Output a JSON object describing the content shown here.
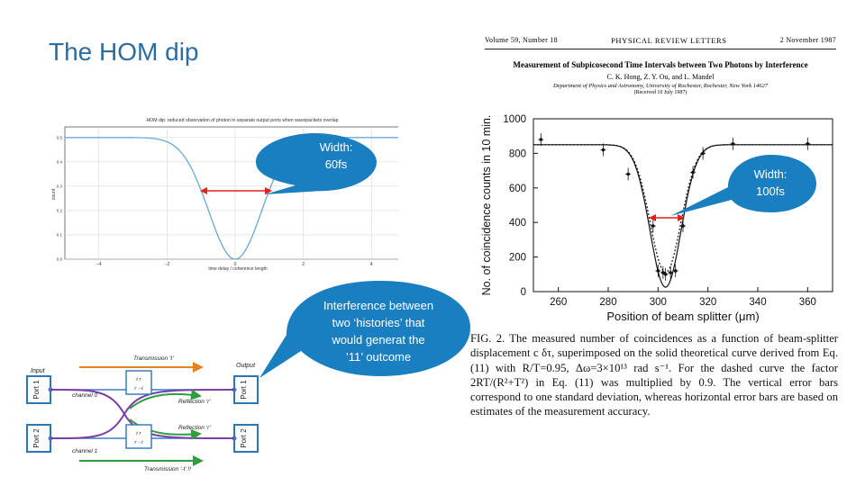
{
  "slide": {
    "title": "The HOM dip"
  },
  "left_plot": {
    "title": "HOM dip: reduced observation of photon in separate output ports when wavepackets overlap",
    "xlabel": "time delay / coherence length",
    "ylabel": "count",
    "x_ticks": [
      "−4",
      "−2",
      "0",
      "2",
      "4"
    ],
    "y_ticks": [
      "0.0",
      "0.1",
      "0.2",
      "0.3",
      "0.4",
      "0.5"
    ],
    "callout": {
      "line1": "Width:",
      "line2": "60fs"
    }
  },
  "right_plot": {
    "ylabel": "No. of coincidence counts in 10 min.",
    "xlabel": "Position of beam splitter (μm)",
    "x_ticks": [
      "260",
      "280",
      "300",
      "320",
      "340",
      "360"
    ],
    "y_ticks": [
      "0",
      "200",
      "400",
      "600",
      "800",
      "1000"
    ],
    "callout": {
      "line1": "Width:",
      "line2": "100fs"
    }
  },
  "interference_callout": {
    "lines": [
      "Interference between",
      "two ‘histories’ that",
      "would generat the",
      "’11’ outcome"
    ]
  },
  "diagram": {
    "input_label": "Input",
    "output_label": "Output",
    "transmission_top": "Transmission ‘t’",
    "transmission_bottom": "Transmission ‘-t’ !!",
    "reflection_top": "Reflection ‘r’",
    "reflection_bottom": "Reflection ‘r’",
    "channel0": "channel 0",
    "channel1": "channel 1",
    "port1": "Port 1",
    "port2": "Port 2",
    "matrix_top_row1": "t  r",
    "matrix_top_row2": "r  −t",
    "matrix_bottom_row1": "t  r",
    "matrix_bottom_row2": "r  −t"
  },
  "journal": {
    "volume": "Volume 59, Number 18",
    "name": "PHYSICAL REVIEW LETTERS",
    "date": "2 November 1987",
    "title": "Measurement of Subpicosecond Time Intervals between Two Photons by Interference",
    "authors": "C. K. Hong, Z. Y. Ou, and L. Mandel",
    "department": "Department of Physics and Astronomy, University of Rochester, Rochester, New York 14627",
    "received": "(Received 10 July 1987)"
  },
  "caption": "FIG. 2. The measured number of coincidences as a function of beam-splitter displacement c δτ, superimposed on the solid theoretical curve derived from Eq. (11) with R/T=0.95, Δω=3×10¹³ rad s⁻¹. For the dashed curve the factor 2RT/(R²+T²) in Eq. (11) was multiplied by 0.9. The vertical error bars correspond to one standard deviation, whereas horizontal error bars are based on estimates of the measurement accuracy.",
  "colors": {
    "title": "#2b6ca3",
    "callout": "#1a7fc1",
    "curve": "#6aa8d6",
    "arrow": "#e0201b",
    "port_box": "#2f74b5",
    "orange": "#e6821e",
    "green": "#2e9e3e",
    "purple": "#7a3ea8"
  },
  "chart_data": [
    {
      "type": "line",
      "title": "HOM dip: reduced observation of photon in separate output ports when wavepackets overlap",
      "xlabel": "time delay / coherence length",
      "ylabel": "count",
      "xlim": [
        -5,
        5
      ],
      "ylim": [
        0,
        0.5
      ],
      "series": [
        {
          "x": [
            -5,
            -2.5,
            -2,
            -1.5,
            -1,
            -0.5,
            0,
            0.5,
            1,
            1.5,
            2,
            2.5,
            5
          ],
          "values": [
            0.5,
            0.499,
            0.491,
            0.447,
            0.316,
            0.111,
            0.0,
            0.111,
            0.316,
            0.447,
            0.491,
            0.499,
            0.5
          ]
        }
      ],
      "grid": true
    },
    {
      "type": "scatter",
      "xlabel": "Position of beam splitter (μm)",
      "ylabel": "No. of coincidence counts in 10 min.",
      "xlim": [
        250,
        370
      ],
      "ylim": [
        0,
        1000
      ],
      "series": [
        {
          "x": [
            253,
            278,
            288,
            298,
            300,
            302,
            303,
            305,
            307,
            310,
            314,
            318,
            330,
            360
          ],
          "values": [
            880,
            820,
            680,
            380,
            120,
            110,
            100,
            110,
            120,
            380,
            690,
            800,
            855,
            855
          ]
        }
      ],
      "grid": false
    }
  ]
}
